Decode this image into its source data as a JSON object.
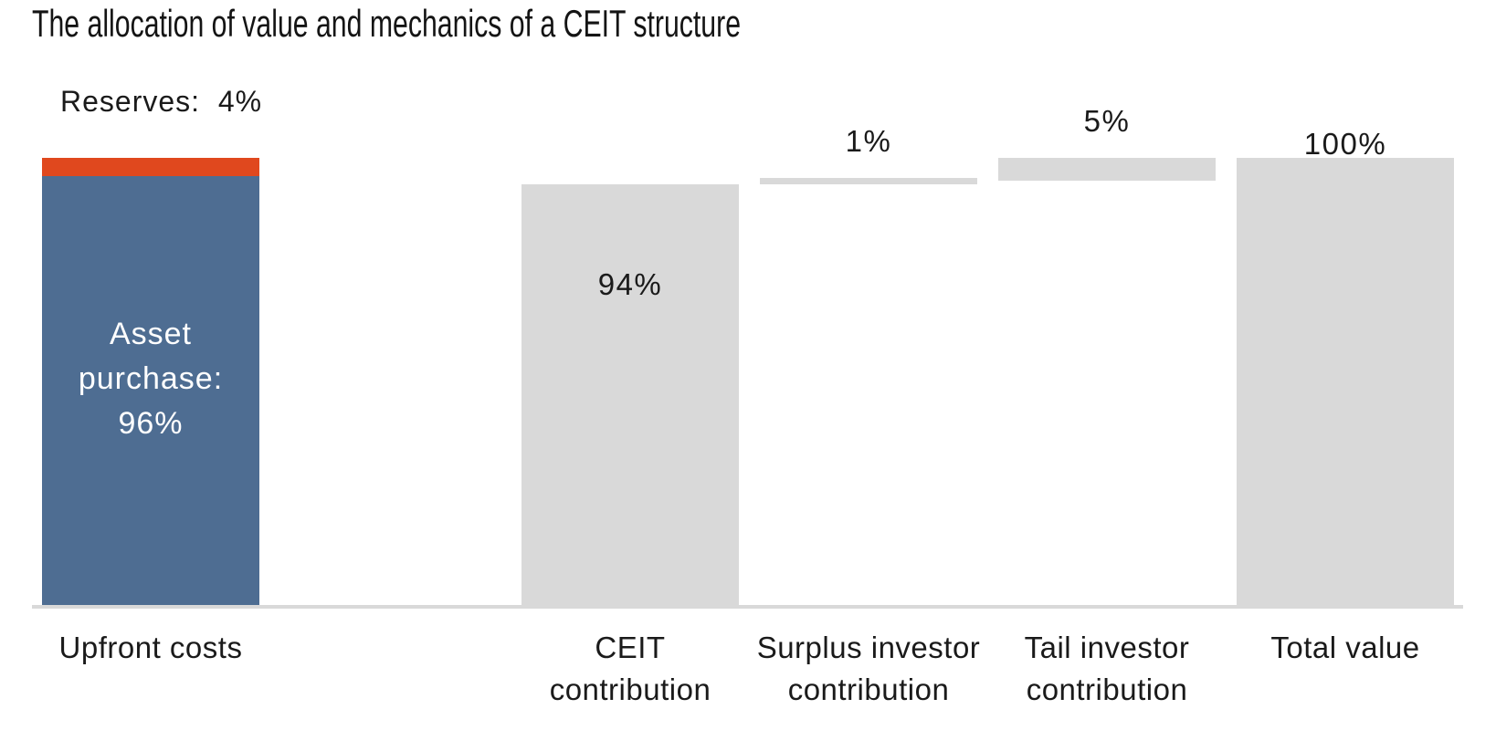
{
  "page": {
    "background": "#FFFFFF"
  },
  "chart_data": {
    "type": "bar",
    "subtype": "stacked-waterfall",
    "title": "The allocation of value and mechanics of a CEIT structure",
    "unit": "%",
    "ylim": [
      0,
      100
    ],
    "grid": false,
    "legend": false,
    "x_axis_line": true,
    "categories": [
      "Upfront costs",
      "CEIT contribution",
      "Surplus investor contribution",
      "Tail investor contribution",
      "Total value"
    ],
    "bars": [
      {
        "category": "Upfront costs",
        "category_lines": [
          "Upfront costs"
        ],
        "base": 0,
        "segments": [
          {
            "name": "Asset purchase",
            "value": 96,
            "color": "#4E6D92",
            "inside_label": "Asset purchase: 96%",
            "inside_label_lines": [
              "Asset",
              "purchase:",
              "96%"
            ],
            "inside_label_color": "#FFFFFF"
          },
          {
            "name": "Reserves",
            "value": 4,
            "color": "#E0481E"
          }
        ],
        "callout": {
          "text": "Reserves:  4%",
          "position": "above-left"
        }
      },
      {
        "category": "CEIT contribution",
        "category_lines": [
          "CEIT",
          "contribution"
        ],
        "base": 0,
        "segments": [
          {
            "name": "CEIT contribution",
            "value": 94,
            "color": "#D9D9D9"
          }
        ],
        "value_label": {
          "text": "94%",
          "position": "inside-top"
        }
      },
      {
        "category": "Surplus investor contribution",
        "category_lines": [
          "Surplus investor",
          "contribution"
        ],
        "base": 94,
        "segments": [
          {
            "name": "Surplus investor contribution",
            "value": 1,
            "color": "#D9D9D9"
          }
        ],
        "value_label": {
          "text": "1%",
          "position": "above"
        }
      },
      {
        "category": "Tail investor contribution",
        "category_lines": [
          "Tail investor",
          "contribution"
        ],
        "base": 95,
        "segments": [
          {
            "name": "Tail investor contribution",
            "value": 5,
            "color": "#D9D9D9"
          }
        ],
        "value_label": {
          "text": "5%",
          "position": "above"
        }
      },
      {
        "category": "Total value",
        "category_lines": [
          "Total value"
        ],
        "base": 0,
        "segments": [
          {
            "name": "Total value",
            "value": 100,
            "color": "#D9D9D9"
          }
        ],
        "value_label": {
          "text": "100%",
          "position": "above-close"
        }
      }
    ],
    "colors": {
      "asset_purchase_blue": "#4E6D92",
      "reserves_orange": "#E0481E",
      "bar_gray": "#D9D9D9",
      "axis_line_gray": "#D9D9D9",
      "text": "#1A1A1A",
      "background": "#FFFFFF"
    }
  }
}
